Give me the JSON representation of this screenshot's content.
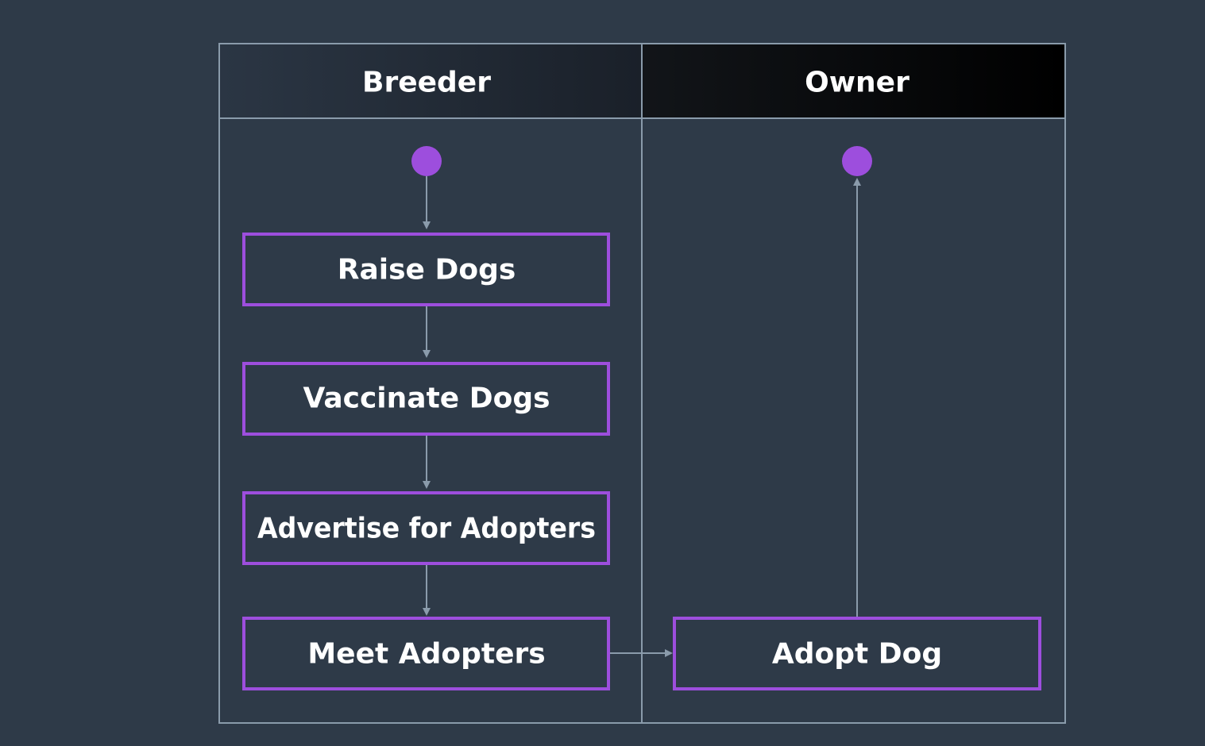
{
  "lanes": [
    {
      "title": "Breeder"
    },
    {
      "title": "Owner"
    }
  ],
  "steps": [
    {
      "label": "Raise Dogs",
      "lane": "Breeder"
    },
    {
      "label": "Vaccinate Dogs",
      "lane": "Breeder"
    },
    {
      "label": "Advertise for Adopters",
      "lane": "Breeder"
    },
    {
      "label": "Meet Adopters",
      "lane": "Breeder"
    },
    {
      "label": "Adopt Dog",
      "lane": "Owner"
    }
  ],
  "colors": {
    "background": "#2e3a48",
    "accent": "#9d4edd",
    "line": "#8a9bab",
    "owner_header": "#000000"
  }
}
